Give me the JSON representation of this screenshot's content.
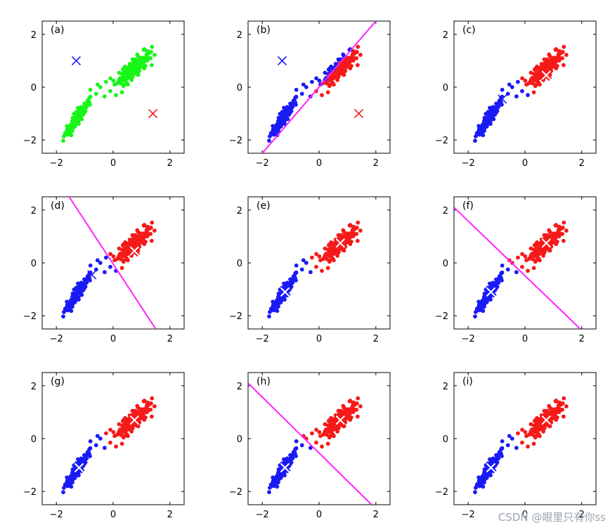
{
  "chart_data": [
    {
      "type": "scatter",
      "panel_label": "(a)",
      "xlim": [
        -2.5,
        2.5
      ],
      "ylim": [
        -2.5,
        2.5
      ],
      "xticks": [
        "−2",
        "0",
        "2"
      ],
      "yticks": [
        "2",
        "0",
        "−2"
      ],
      "clusters": [
        {
          "color": "green",
          "center": [
            -1.25,
            -1.15
          ]
        },
        {
          "color": "green",
          "center": [
            0.75,
            0.75
          ]
        }
      ],
      "centroids": [
        {
          "color": "blue",
          "x": -1.3,
          "y": 1.0
        },
        {
          "color": "red",
          "x": 1.4,
          "y": -1.0
        }
      ],
      "boundary": null
    },
    {
      "type": "scatter",
      "panel_label": "(b)",
      "xlim": [
        -2.5,
        2.5
      ],
      "ylim": [
        -2.5,
        2.5
      ],
      "xticks": [
        "−2",
        "0",
        "2"
      ],
      "yticks": [
        "2",
        "0",
        "−2"
      ],
      "clusters": [
        {
          "color": "blue",
          "center": [
            -1.25,
            -1.15
          ]
        },
        {
          "color": "mixed",
          "center": [
            0.75,
            0.75
          ]
        }
      ],
      "centroids": [
        {
          "color": "blue",
          "x": -1.3,
          "y": 1.0
        },
        {
          "color": "red",
          "x": 1.4,
          "y": -1.0
        }
      ],
      "boundary": [
        [
          -2.0,
          -2.5
        ],
        [
          2.0,
          2.5
        ]
      ]
    },
    {
      "type": "scatter",
      "panel_label": "(c)",
      "xlim": [
        -2.5,
        2.5
      ],
      "ylim": [
        -2.5,
        2.5
      ],
      "xticks": [
        "−2",
        "0",
        "2"
      ],
      "yticks": [
        "2",
        "0",
        "−2"
      ],
      "clusters": [
        {
          "color": "blue",
          "center": [
            -1.25,
            -1.15
          ]
        },
        {
          "color": "mixed",
          "center": [
            0.75,
            0.75
          ]
        }
      ],
      "centroids": [
        {
          "color": "blue",
          "x": -0.8,
          "y": -0.45
        },
        {
          "color": "red",
          "x": 0.75,
          "y": 0.45
        }
      ],
      "boundary": null
    },
    {
      "type": "scatter",
      "panel_label": "(d)",
      "xlim": [
        -2.5,
        2.5
      ],
      "ylim": [
        -2.5,
        2.5
      ],
      "xticks": [
        "−2",
        "0",
        "2"
      ],
      "yticks": [
        "2",
        "0",
        "−2"
      ],
      "clusters": [
        {
          "color": "blue",
          "center": [
            -1.25,
            -1.15
          ]
        },
        {
          "color": "red",
          "center": [
            0.75,
            0.75
          ]
        }
      ],
      "centroids": [
        {
          "color": "blue",
          "x": -0.75,
          "y": -0.45
        },
        {
          "color": "red",
          "x": 0.75,
          "y": 0.45
        }
      ],
      "boundary": [
        [
          -1.55,
          2.5
        ],
        [
          1.5,
          -2.5
        ]
      ]
    },
    {
      "type": "scatter",
      "panel_label": "(e)",
      "xlim": [
        -2.5,
        2.5
      ],
      "ylim": [
        -2.5,
        2.5
      ],
      "xticks": [
        "−2",
        "0",
        "2"
      ],
      "yticks": [
        "2",
        "0",
        "−2"
      ],
      "clusters": [
        {
          "color": "blue",
          "center": [
            -1.25,
            -1.15
          ]
        },
        {
          "color": "red",
          "center": [
            0.75,
            0.75
          ]
        }
      ],
      "centroids": [
        {
          "color": "blue",
          "x": -1.2,
          "y": -1.1
        },
        {
          "color": "red",
          "x": 0.75,
          "y": 0.75
        }
      ],
      "boundary": null
    },
    {
      "type": "scatter",
      "panel_label": "(f)",
      "xlim": [
        -2.5,
        2.5
      ],
      "ylim": [
        -2.5,
        2.5
      ],
      "xticks": [
        "−2",
        "0",
        "2"
      ],
      "yticks": [
        "2",
        "0",
        "−2"
      ],
      "clusters": [
        {
          "color": "blue",
          "center": [
            -1.25,
            -1.15
          ]
        },
        {
          "color": "red",
          "center": [
            0.75,
            0.75
          ]
        }
      ],
      "centroids": [
        {
          "color": "blue",
          "x": -1.2,
          "y": -1.1
        },
        {
          "color": "red",
          "x": 0.75,
          "y": 0.75
        }
      ],
      "boundary": [
        [
          -2.5,
          2.1
        ],
        [
          1.95,
          -2.5
        ]
      ]
    },
    {
      "type": "scatter",
      "panel_label": "(g)",
      "xlim": [
        -2.5,
        2.5
      ],
      "ylim": [
        -2.5,
        2.5
      ],
      "xticks": [
        "−2",
        "0",
        "2"
      ],
      "yticks": [
        "2",
        "0",
        "−2"
      ],
      "clusters": [
        {
          "color": "blue",
          "center": [
            -1.25,
            -1.15
          ]
        },
        {
          "color": "red",
          "center": [
            0.75,
            0.75
          ]
        }
      ],
      "centroids": [
        {
          "color": "blue",
          "x": -1.2,
          "y": -1.1
        },
        {
          "color": "red",
          "x": 0.75,
          "y": 0.7
        }
      ],
      "boundary": null
    },
    {
      "type": "scatter",
      "panel_label": "(h)",
      "xlim": [
        -2.5,
        2.5
      ],
      "ylim": [
        -2.5,
        2.5
      ],
      "xticks": [
        "−2",
        "0",
        "2"
      ],
      "yticks": [
        "2",
        "0",
        "−2"
      ],
      "clusters": [
        {
          "color": "blue",
          "center": [
            -1.25,
            -1.15
          ]
        },
        {
          "color": "red",
          "center": [
            0.75,
            0.75
          ]
        }
      ],
      "centroids": [
        {
          "color": "blue",
          "x": -1.2,
          "y": -1.1
        },
        {
          "color": "red",
          "x": 0.75,
          "y": 0.7
        }
      ],
      "boundary": [
        [
          -2.5,
          2.1
        ],
        [
          1.85,
          -2.5
        ]
      ]
    },
    {
      "type": "scatter",
      "panel_label": "(i)",
      "xlim": [
        -2.5,
        2.5
      ],
      "ylim": [
        -2.5,
        2.5
      ],
      "xticks": [
        "−2",
        "0",
        "2"
      ],
      "yticks": [
        "2",
        "0",
        "−2"
      ],
      "clusters": [
        {
          "color": "blue",
          "center": [
            -1.25,
            -1.15
          ]
        },
        {
          "color": "red",
          "center": [
            0.75,
            0.75
          ]
        }
      ],
      "centroids": [
        {
          "color": "blue",
          "x": -1.2,
          "y": -1.1
        },
        {
          "color": "red",
          "x": 0.75,
          "y": 0.7
        }
      ],
      "boundary": null
    }
  ],
  "colors": {
    "blue": "#1a1af5",
    "red": "#f51a1a",
    "green": "#19f519",
    "magenta": "#ff22ff"
  },
  "watermark": "CSDN @眼里只有你ss"
}
